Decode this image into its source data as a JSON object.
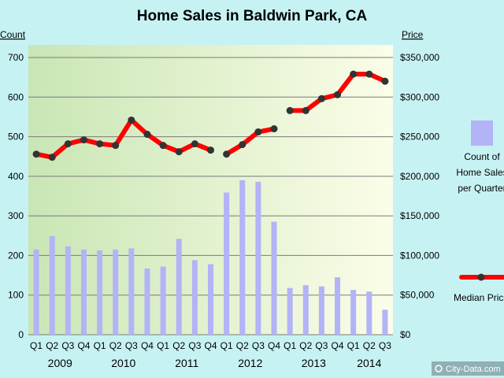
{
  "chart_data": {
    "type": "bar+line",
    "title": "Home Sales in Baldwin Park, CA",
    "left_axis_label": "Count",
    "right_axis_label": "Price",
    "left_ylim": [
      0,
      700
    ],
    "right_ylim": [
      0,
      350000
    ],
    "left_ticks": [
      "0",
      "100",
      "200",
      "300",
      "400",
      "500",
      "600",
      "700"
    ],
    "right_ticks": [
      "$0",
      "$50,000",
      "$100,000",
      "$150,000",
      "$200,000",
      "$250,000",
      "$300,000",
      "$350,000"
    ],
    "categories": [
      "Q1",
      "Q2",
      "Q3",
      "Q4",
      "Q1",
      "Q2",
      "Q3",
      "Q4",
      "Q1",
      "Q2",
      "Q3",
      "Q4",
      "Q1",
      "Q2",
      "Q3",
      "Q4",
      "Q1",
      "Q2",
      "Q3",
      "Q4",
      "Q1",
      "Q2",
      "Q3"
    ],
    "years": [
      {
        "label": "2009",
        "start": 0,
        "end": 3
      },
      {
        "label": "2010",
        "start": 4,
        "end": 7
      },
      {
        "label": "2011",
        "start": 8,
        "end": 11
      },
      {
        "label": "2012",
        "start": 12,
        "end": 15
      },
      {
        "label": "2013",
        "start": 16,
        "end": 19
      },
      {
        "label": "2014",
        "start": 20,
        "end": 22
      }
    ],
    "grid": true,
    "series": [
      {
        "name": "Count of Home Sales per Quarter",
        "type": "bar",
        "color": "#b3b3f7",
        "values": [
          215,
          249,
          223,
          215,
          213,
          215,
          218,
          167,
          172,
          242,
          188,
          178,
          359,
          390,
          386,
          285,
          118,
          125,
          122,
          145,
          113,
          109,
          63
        ]
      },
      {
        "name": "Median Price",
        "type": "line",
        "color": "#ff0000",
        "marker_color": "#333333",
        "values": [
          228000,
          224000,
          241000,
          246000,
          241000,
          239000,
          271000,
          253000,
          239000,
          231000,
          241000,
          233000,
          228000,
          240000,
          256000,
          260000,
          283000,
          283000,
          298000,
          303000,
          329000,
          329000,
          320000
        ]
      }
    ],
    "line_breaks_after": [
      11,
      15
    ],
    "legend": [
      {
        "label_lines": [
          "Count of",
          "Home Sales",
          "per Quarter"
        ],
        "kind": "bar",
        "color": "#b3b3f7"
      },
      {
        "label_lines": [
          "Median Price"
        ],
        "kind": "line",
        "color": "#ff0000"
      }
    ],
    "legend_position": "right"
  },
  "watermark": "City-Data.com"
}
